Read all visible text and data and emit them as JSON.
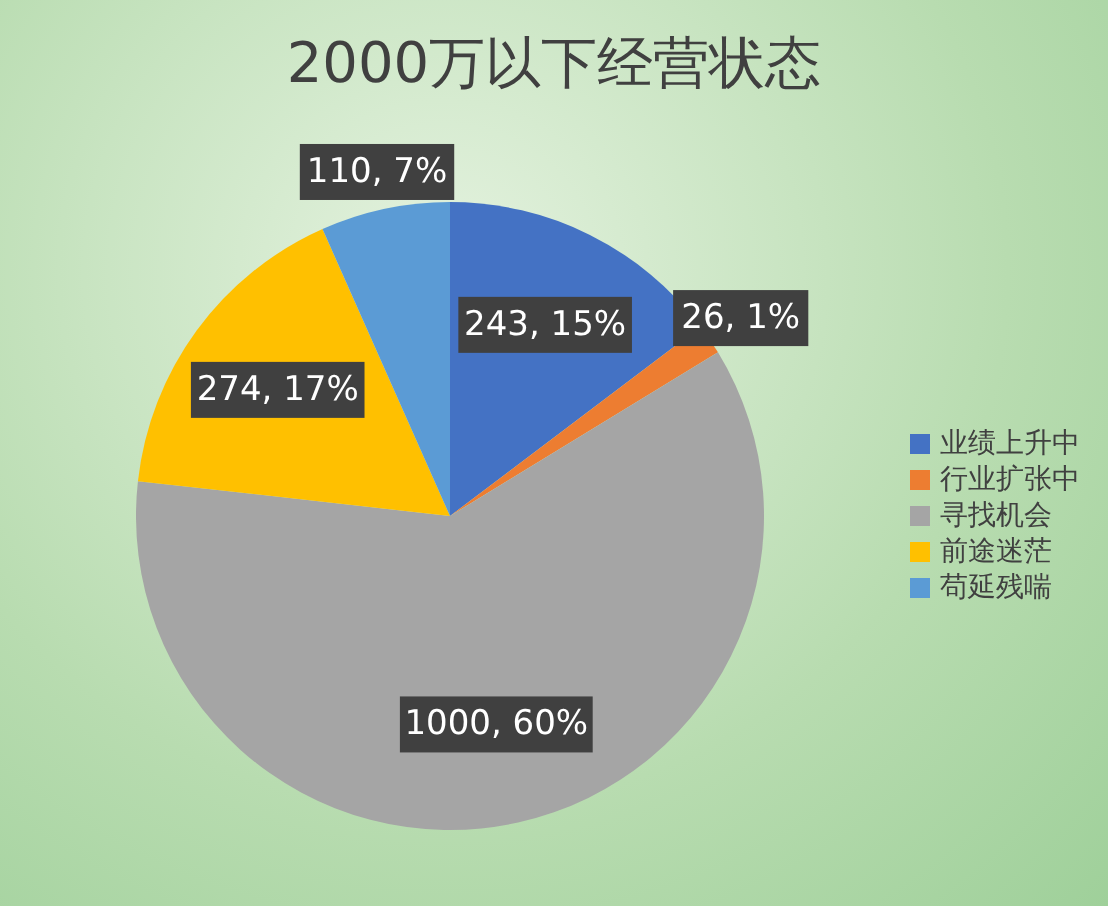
{
  "chart_data": {
    "type": "pie",
    "title": "2000万以下经营状态",
    "categories": [
      "业绩上升中",
      "行业扩张中",
      "寻找机会",
      "前途迷茫",
      "苟延残喘"
    ],
    "values": [
      243,
      26,
      1000,
      274,
      110
    ],
    "colors": [
      "#4472c4",
      "#ed7d31",
      "#a5a5a5",
      "#ffc000",
      "#5b9bd5"
    ],
    "value_labels": [
      "243, 15%",
      "26, 1%",
      "1000, 60%",
      "274, 17%",
      "110, 7%"
    ],
    "legend": "right"
  }
}
